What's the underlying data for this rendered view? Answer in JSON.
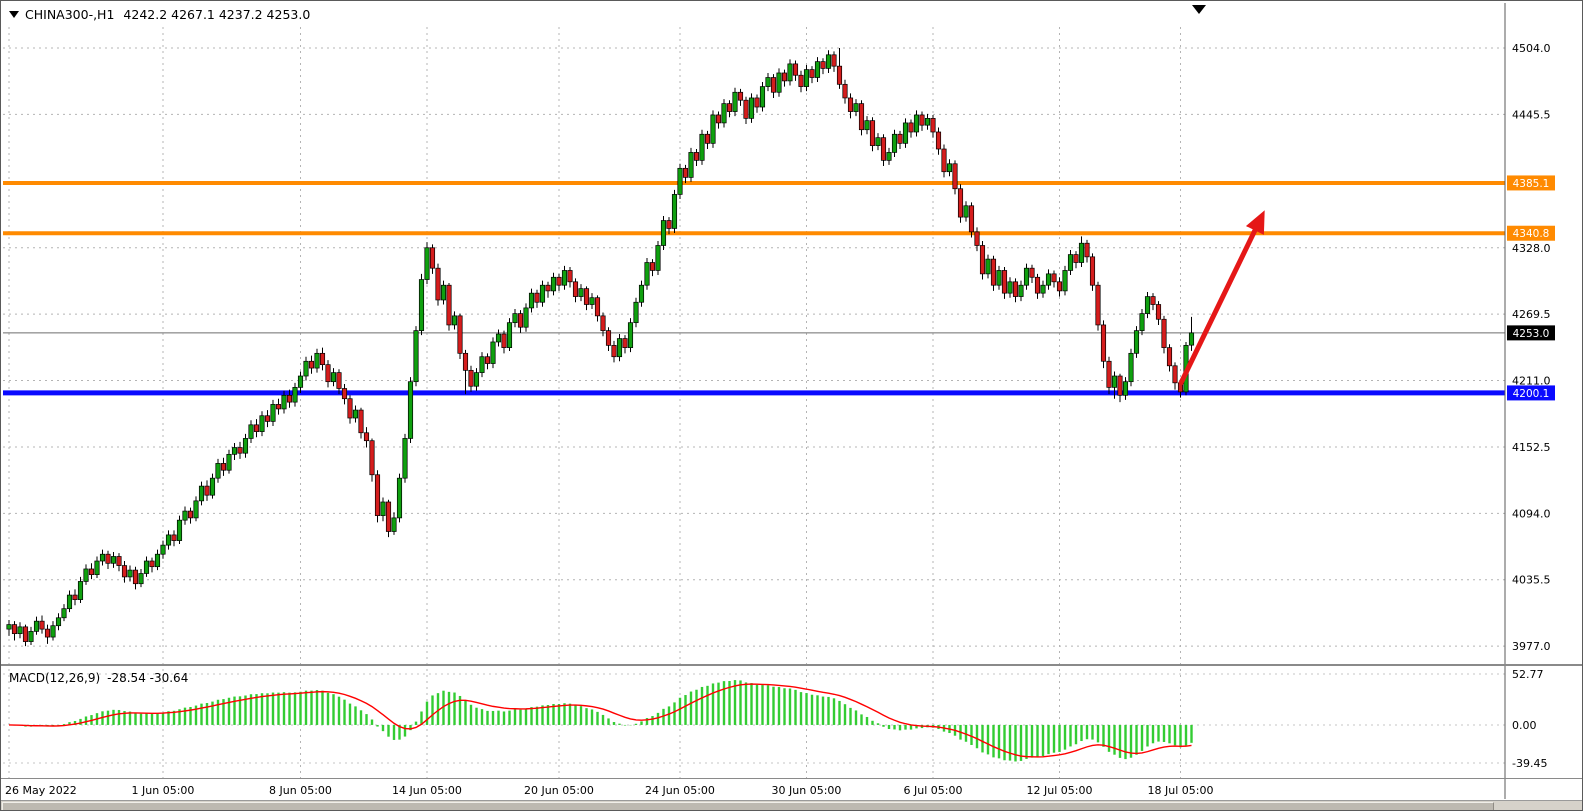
{
  "header": {
    "symbol": "CHINA300-,H1",
    "ohlc_text": "4242.2 4267.1 4237.2 4253.0",
    "open": "4242.2",
    "high": "4267.1",
    "low": "4237.2",
    "close": "4253.0"
  },
  "macd_panel": {
    "label": "MACD(12,26,9)",
    "values_text": "-28.54 -30.64",
    "value_main": "-28.54",
    "value_signal": "-30.64",
    "ticks": [
      "52.77",
      "0.00",
      "-39.45"
    ]
  },
  "price_axis": {
    "ticks": [
      "4504.0",
      "4445.5",
      "4328.0",
      "4269.5",
      "4211.0",
      "4152.5",
      "4094.0",
      "4035.5",
      "3977.0"
    ],
    "tags": [
      {
        "text": "4385.1",
        "bg": "#ff8a00"
      },
      {
        "text": "4340.8",
        "bg": "#ff8a00"
      },
      {
        "text": "4253.0",
        "bg": "#000000"
      },
      {
        "text": "4200.1",
        "bg": "#0a0aff"
      }
    ]
  },
  "time_axis": {
    "labels": [
      "26 May 2022",
      "1 Jun 05:00",
      "8 Jun 05:00",
      "14 Jun 05:00",
      "20 Jun 05:00",
      "24 Jun 05:00",
      "30 Jun 05:00",
      "6 Jul 05:00",
      "12 Jul 05:00",
      "18 Jul 05:00"
    ]
  },
  "chart_data": {
    "type": "candlestick",
    "title": "CHINA300-,H1",
    "timeframe": "H1",
    "ylim": [
      3960,
      4515
    ],
    "y_gridlines": [
      3977,
      4035.5,
      4094,
      4152.5,
      4211,
      4269.5,
      4328,
      4445.5,
      4504
    ],
    "x_tick_indices": [
      0,
      28,
      53,
      76,
      100,
      122,
      145,
      168,
      191,
      213
    ],
    "x_tick_labels": [
      "26 May 2022",
      "1 Jun 05:00",
      "8 Jun 05:00",
      "14 Jun 05:00",
      "20 Jun 05:00",
      "24 Jun 05:00",
      "30 Jun 05:00",
      "6 Jul 05:00",
      "12 Jul 05:00",
      "18 Jul 05:00"
    ],
    "current_price": 4253.0,
    "horizontal_lines": [
      {
        "price": 4385.1,
        "color": "#ff8a00",
        "width": 4
      },
      {
        "price": 4340.8,
        "color": "#ff8a00",
        "width": 4
      },
      {
        "price": 4200.1,
        "color": "#0a0aff",
        "width": 5
      }
    ],
    "trend_arrow": {
      "from_index": 213,
      "from_price": 4208,
      "to_index": 227,
      "to_price": 4348,
      "color": "#e51717"
    },
    "colors": {
      "up": "#0fa00f",
      "down": "#d51d1d",
      "outline": "#000000"
    },
    "macd": {
      "params": "12,26,9",
      "main_last": -28.54,
      "signal_last": -30.64,
      "ylim": [
        -55,
        58
      ],
      "ticks": [
        52.77,
        0,
        -39.45
      ],
      "histogram_color": "#33cc33",
      "signal_color": "#ff0000"
    },
    "bars": [
      [
        3992,
        4000,
        3986,
        3996
      ],
      [
        3996,
        3999,
        3982,
        3988
      ],
      [
        3988,
        3998,
        3984,
        3994
      ],
      [
        3994,
        3996,
        3977,
        3981
      ],
      [
        3981,
        3994,
        3978,
        3990
      ],
      [
        3990,
        4003,
        3987,
        3999
      ],
      [
        3999,
        4004,
        3988,
        3992
      ],
      [
        3992,
        3996,
        3979,
        3985
      ],
      [
        3985,
        3999,
        3982,
        3995
      ],
      [
        3995,
        4006,
        3991,
        4002
      ],
      [
        4002,
        4014,
        3999,
        4010
      ],
      [
        4010,
        4026,
        4007,
        4022
      ],
      [
        4022,
        4027,
        4013,
        4018
      ],
      [
        4018,
        4038,
        4015,
        4034
      ],
      [
        4034,
        4049,
        4031,
        4045
      ],
      [
        4045,
        4050,
        4036,
        4040
      ],
      [
        4040,
        4056,
        4037,
        4052
      ],
      [
        4052,
        4062,
        4048,
        4058
      ],
      [
        4058,
        4061,
        4045,
        4050
      ],
      [
        4050,
        4060,
        4046,
        4056
      ],
      [
        4056,
        4059,
        4043,
        4048
      ],
      [
        4048,
        4052,
        4033,
        4038
      ],
      [
        4038,
        4048,
        4034,
        4044
      ],
      [
        4044,
        4047,
        4027,
        4032
      ],
      [
        4032,
        4045,
        4029,
        4041
      ],
      [
        4041,
        4056,
        4038,
        4052
      ],
      [
        4052,
        4055,
        4042,
        4047
      ],
      [
        4047,
        4062,
        4044,
        4058
      ],
      [
        4058,
        4070,
        4054,
        4066
      ],
      [
        4066,
        4079,
        4062,
        4075
      ],
      [
        4075,
        4079,
        4065,
        4070
      ],
      [
        4070,
        4092,
        4067,
        4088
      ],
      [
        4088,
        4100,
        4084,
        4096
      ],
      [
        4096,
        4099,
        4085,
        4090
      ],
      [
        4090,
        4109,
        4087,
        4105
      ],
      [
        4105,
        4122,
        4101,
        4118
      ],
      [
        4118,
        4123,
        4105,
        4110
      ],
      [
        4110,
        4129,
        4107,
        4125
      ],
      [
        4125,
        4142,
        4121,
        4138
      ],
      [
        4138,
        4143,
        4127,
        4132
      ],
      [
        4132,
        4150,
        4129,
        4146
      ],
      [
        4146,
        4156,
        4141,
        4152
      ],
      [
        4152,
        4157,
        4142,
        4147
      ],
      [
        4147,
        4164,
        4143,
        4160
      ],
      [
        4160,
        4176,
        4156,
        4172
      ],
      [
        4172,
        4177,
        4161,
        4166
      ],
      [
        4166,
        4184,
        4162,
        4180
      ],
      [
        4180,
        4185,
        4170,
        4175
      ],
      [
        4175,
        4194,
        4171,
        4190
      ],
      [
        4190,
        4195,
        4181,
        4186
      ],
      [
        4186,
        4202,
        4182,
        4198
      ],
      [
        4198,
        4203,
        4187,
        4192
      ],
      [
        4192,
        4209,
        4188,
        4205
      ],
      [
        4205,
        4219,
        4200,
        4215
      ],
      [
        4215,
        4232,
        4211,
        4228
      ],
      [
        4228,
        4233,
        4217,
        4222
      ],
      [
        4222,
        4239,
        4218,
        4235
      ],
      [
        4235,
        4240,
        4220,
        4225
      ],
      [
        4225,
        4229,
        4205,
        4210
      ],
      [
        4210,
        4222,
        4206,
        4218
      ],
      [
        4218,
        4221,
        4199,
        4204
      ],
      [
        4204,
        4208,
        4190,
        4195
      ],
      [
        4195,
        4198,
        4173,
        4178
      ],
      [
        4178,
        4189,
        4174,
        4185
      ],
      [
        4185,
        4187,
        4160,
        4165
      ],
      [
        4165,
        4170,
        4152,
        4158
      ],
      [
        4158,
        4160,
        4122,
        4128
      ],
      [
        4128,
        4132,
        4086,
        4092
      ],
      [
        4092,
        4108,
        4087,
        4104
      ],
      [
        4104,
        4106,
        4073,
        4078
      ],
      [
        4078,
        4095,
        4075,
        4090
      ],
      [
        4090,
        4129,
        4086,
        4125
      ],
      [
        4125,
        4164,
        4121,
        4160
      ],
      [
        4160,
        4214,
        4156,
        4210
      ],
      [
        4210,
        4259,
        4206,
        4255
      ],
      [
        4255,
        4305,
        4251,
        4300
      ],
      [
        4300,
        4333,
        4296,
        4328
      ],
      [
        4328,
        4331,
        4305,
        4310
      ],
      [
        4310,
        4314,
        4277,
        4282
      ],
      [
        4282,
        4299,
        4278,
        4295
      ],
      [
        4295,
        4297,
        4255,
        4260
      ],
      [
        4260,
        4272,
        4256,
        4268
      ],
      [
        4268,
        4270,
        4230,
        4235
      ],
      [
        4235,
        4238,
        4199,
        4220
      ],
      [
        4220,
        4224,
        4201,
        4206
      ],
      [
        4206,
        4222,
        4202,
        4218
      ],
      [
        4218,
        4236,
        4214,
        4232
      ],
      [
        4232,
        4235,
        4221,
        4226
      ],
      [
        4226,
        4249,
        4222,
        4245
      ],
      [
        4245,
        4256,
        4241,
        4252
      ],
      [
        4252,
        4255,
        4235,
        4240
      ],
      [
        4240,
        4266,
        4237,
        4262
      ],
      [
        4262,
        4274,
        4258,
        4270
      ],
      [
        4270,
        4273,
        4253,
        4258
      ],
      [
        4258,
        4279,
        4254,
        4275
      ],
      [
        4275,
        4292,
        4271,
        4288
      ],
      [
        4288,
        4291,
        4275,
        4280
      ],
      [
        4280,
        4299,
        4276,
        4295
      ],
      [
        4295,
        4298,
        4284,
        4290
      ],
      [
        4290,
        4306,
        4286,
        4302
      ],
      [
        4302,
        4305,
        4290,
        4295
      ],
      [
        4295,
        4312,
        4291,
        4308
      ],
      [
        4308,
        4311,
        4293,
        4298
      ],
      [
        4298,
        4301,
        4280,
        4285
      ],
      [
        4285,
        4296,
        4281,
        4292
      ],
      [
        4292,
        4294,
        4273,
        4278
      ],
      [
        4278,
        4288,
        4274,
        4284
      ],
      [
        4284,
        4286,
        4263,
        4268
      ],
      [
        4268,
        4271,
        4250,
        4255
      ],
      [
        4255,
        4258,
        4237,
        4242
      ],
      [
        4242,
        4246,
        4227,
        4232
      ],
      [
        4232,
        4252,
        4228,
        4248
      ],
      [
        4248,
        4251,
        4235,
        4240
      ],
      [
        4240,
        4266,
        4236,
        4262
      ],
      [
        4262,
        4284,
        4258,
        4280
      ],
      [
        4280,
        4299,
        4276,
        4295
      ],
      [
        4295,
        4319,
        4291,
        4315
      ],
      [
        4315,
        4318,
        4303,
        4308
      ],
      [
        4308,
        4334,
        4304,
        4330
      ],
      [
        4330,
        4356,
        4326,
        4352
      ],
      [
        4352,
        4355,
        4340,
        4345
      ],
      [
        4345,
        4379,
        4341,
        4375
      ],
      [
        4375,
        4402,
        4371,
        4398
      ],
      [
        4398,
        4401,
        4385,
        4390
      ],
      [
        4390,
        4416,
        4386,
        4412
      ],
      [
        4412,
        4415,
        4400,
        4405
      ],
      [
        4405,
        4432,
        4401,
        4428
      ],
      [
        4428,
        4431,
        4415,
        4420
      ],
      [
        4420,
        4449,
        4416,
        4445
      ],
      [
        4445,
        4448,
        4433,
        4438
      ],
      [
        4438,
        4459,
        4434,
        4455
      ],
      [
        4455,
        4458,
        4443,
        4448
      ],
      [
        4448,
        4469,
        4444,
        4465
      ],
      [
        4465,
        4468,
        4453,
        4458
      ],
      [
        4458,
        4461,
        4437,
        4442
      ],
      [
        4442,
        4464,
        4438,
        4460
      ],
      [
        4460,
        4463,
        4447,
        4452
      ],
      [
        4452,
        4474,
        4448,
        4470
      ],
      [
        4470,
        4482,
        4466,
        4478
      ],
      [
        4478,
        4481,
        4460,
        4465
      ],
      [
        4465,
        4486,
        4461,
        4482
      ],
      [
        4482,
        4485,
        4470,
        4475
      ],
      [
        4475,
        4494,
        4471,
        4490
      ],
      [
        4490,
        4493,
        4475,
        4480
      ],
      [
        4480,
        4484,
        4465,
        4470
      ],
      [
        4470,
        4489,
        4466,
        4485
      ],
      [
        4485,
        4488,
        4473,
        4478
      ],
      [
        4478,
        4496,
        4474,
        4492
      ],
      [
        4492,
        4495,
        4481,
        4486
      ],
      [
        4486,
        4502,
        4482,
        4498
      ],
      [
        4498,
        4501,
        4483,
        4488
      ],
      [
        4488,
        4504,
        4468,
        4472
      ],
      [
        4472,
        4476,
        4455,
        4460
      ],
      [
        4460,
        4464,
        4442,
        4448
      ],
      [
        4448,
        4459,
        4444,
        4455
      ],
      [
        4455,
        4458,
        4427,
        4432
      ],
      [
        4432,
        4444,
        4428,
        4440
      ],
      [
        4440,
        4443,
        4413,
        4418
      ],
      [
        4418,
        4429,
        4414,
        4425
      ],
      [
        4425,
        4428,
        4400,
        4405
      ],
      [
        4405,
        4416,
        4401,
        4412
      ],
      [
        4412,
        4432,
        4408,
        4428
      ],
      [
        4428,
        4431,
        4415,
        4420
      ],
      [
        4420,
        4442,
        4416,
        4438
      ],
      [
        4438,
        4441,
        4425,
        4430
      ],
      [
        4430,
        4449,
        4426,
        4445
      ],
      [
        4445,
        4448,
        4431,
        4436
      ],
      [
        4436,
        4446,
        4432,
        4442
      ],
      [
        4442,
        4445,
        4425,
        4430
      ],
      [
        4430,
        4434,
        4410,
        4415
      ],
      [
        4415,
        4419,
        4390,
        4395
      ],
      [
        4395,
        4406,
        4391,
        4402
      ],
      [
        4402,
        4405,
        4375,
        4380
      ],
      [
        4380,
        4384,
        4350,
        4355
      ],
      [
        4355,
        4369,
        4351,
        4365
      ],
      [
        4365,
        4368,
        4337,
        4342
      ],
      [
        4342,
        4346,
        4325,
        4330
      ],
      [
        4330,
        4334,
        4300,
        4305
      ],
      [
        4305,
        4322,
        4301,
        4318
      ],
      [
        4318,
        4321,
        4290,
        4295
      ],
      [
        4295,
        4312,
        4291,
        4308
      ],
      [
        4308,
        4311,
        4283,
        4288
      ],
      [
        4288,
        4302,
        4284,
        4298
      ],
      [
        4298,
        4301,
        4280,
        4285
      ],
      [
        4285,
        4299,
        4281,
        4295
      ],
      [
        4295,
        4314,
        4291,
        4310
      ],
      [
        4310,
        4313,
        4297,
        4302
      ],
      [
        4302,
        4305,
        4283,
        4288
      ],
      [
        4288,
        4299,
        4284,
        4295
      ],
      [
        4295,
        4309,
        4291,
        4305
      ],
      [
        4305,
        4308,
        4293,
        4298
      ],
      [
        4298,
        4302,
        4285,
        4290
      ],
      [
        4290,
        4312,
        4286,
        4308
      ],
      [
        4308,
        4326,
        4304,
        4322
      ],
      [
        4322,
        4325,
        4310,
        4315
      ],
      [
        4315,
        4338,
        4311,
        4332
      ],
      [
        4332,
        4335,
        4315,
        4320
      ],
      [
        4320,
        4323,
        4290,
        4295
      ],
      [
        4295,
        4298,
        4255,
        4260
      ],
      [
        4260,
        4264,
        4222,
        4228
      ],
      [
        4228,
        4232,
        4199,
        4205
      ],
      [
        4205,
        4219,
        4195,
        4215
      ],
      [
        4215,
        4217,
        4192,
        4198
      ],
      [
        4198,
        4214,
        4194,
        4210
      ],
      [
        4210,
        4239,
        4206,
        4235
      ],
      [
        4235,
        4259,
        4231,
        4255
      ],
      [
        4255,
        4274,
        4251,
        4270
      ],
      [
        4270,
        4289,
        4266,
        4285
      ],
      [
        4285,
        4288,
        4273,
        4278
      ],
      [
        4278,
        4281,
        4260,
        4265
      ],
      [
        4265,
        4268,
        4235,
        4240
      ],
      [
        4240,
        4243,
        4219,
        4224
      ],
      [
        4224,
        4227,
        4203,
        4209
      ],
      [
        4209,
        4212,
        4196,
        4201
      ],
      [
        4201,
        4245,
        4198,
        4242
      ],
      [
        4242.2,
        4267.1,
        4237.2,
        4253.0
      ]
    ]
  }
}
